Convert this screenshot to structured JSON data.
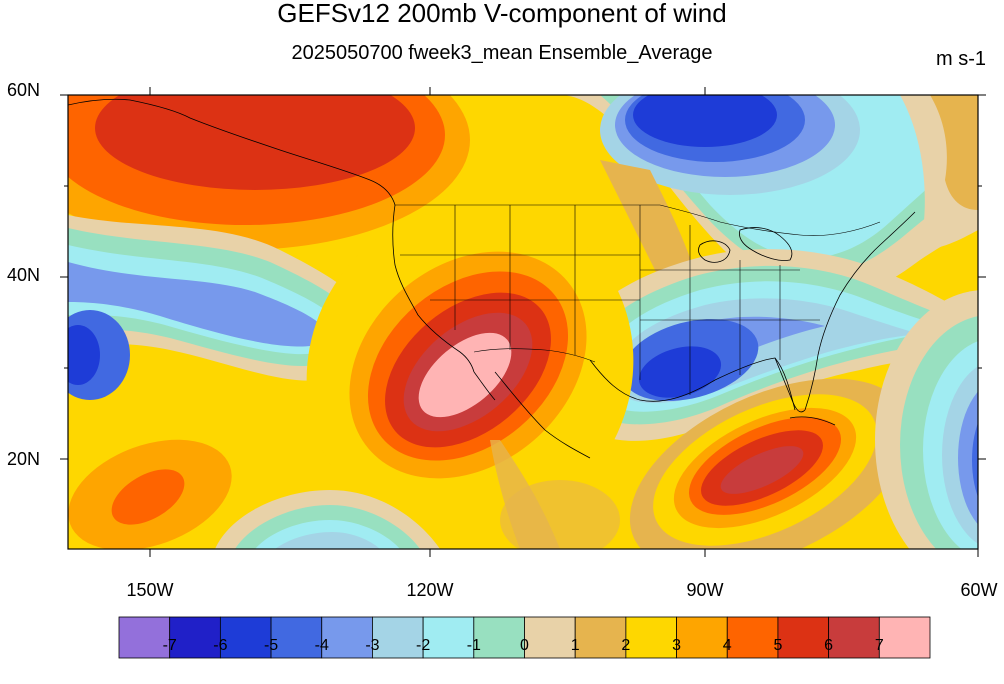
{
  "title": "GEFSv12 200mb V-component of wind",
  "subtitle": "2025050700 fweek3_mean Ensemble_Average",
  "units": "m s-1",
  "map": {
    "projection": "cylindrical equidistant",
    "lon_range": [
      -163,
      -60
    ],
    "lat_range": [
      10,
      60
    ],
    "lat_labels": [
      "60N",
      "40N",
      "20N"
    ],
    "lon_labels": [
      "150W",
      "120W",
      "90W",
      "60W"
    ],
    "contours": "filled contour of meridional wind",
    "features": [
      {
        "name": "Gulf of Alaska ridge flank",
        "sign": "positive",
        "max_value": 6
      },
      {
        "name": "Desert Southwest maximum",
        "sign": "positive",
        "max_value": 7
      },
      {
        "name": "Caribbean maximum",
        "sign": "positive",
        "max_value": 6
      },
      {
        "name": "Gulf of Mexico minimum",
        "sign": "negative",
        "min_value": -6
      },
      {
        "name": "Hudson Bay minimum",
        "sign": "negative",
        "min_value": -6
      },
      {
        "name": "Central Pacific minimum",
        "sign": "negative",
        "min_value": -5
      },
      {
        "name": "Western Atlantic minimum",
        "sign": "negative",
        "min_value": -6
      }
    ]
  },
  "colorbar": {
    "labels": [
      "-7",
      "-6",
      "-5",
      "-4",
      "-3",
      "-2",
      "-1",
      "0",
      "1",
      "2",
      "3",
      "4",
      "5",
      "6",
      "7"
    ],
    "colors": [
      "#9370db",
      "#2020c8",
      "#1e3cd7",
      "#4169e1",
      "#7799ec",
      "#a4d4e6",
      "#a0ecf2",
      "#98e0c0",
      "#e8d2a8",
      "#e6b44e",
      "#fed700",
      "#fea500",
      "#fe6400",
      "#dc3214",
      "#c83c3c",
      "#ffb4b4"
    ]
  }
}
